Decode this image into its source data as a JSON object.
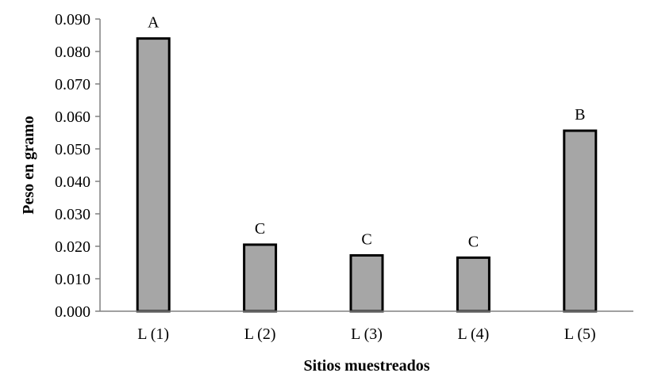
{
  "chart_data": {
    "type": "bar",
    "categories": [
      "L (1)",
      "L (2)",
      "L (3)",
      "L (4)",
      "L (5)"
    ],
    "values": [
      0.084,
      0.0205,
      0.0172,
      0.0165,
      0.0556
    ],
    "significance_letters": [
      "A",
      "C",
      "C",
      "C",
      "B"
    ],
    "xlabel": "Sitios muestreados",
    "ylabel": "Peso en gramo",
    "ylim": [
      0,
      0.09
    ],
    "yticks": [
      "0.000",
      "0.010",
      "0.020",
      "0.030",
      "0.040",
      "0.050",
      "0.060",
      "0.070",
      "0.080",
      "0.090"
    ],
    "grid": false,
    "legend": "none",
    "colors": {
      "bar_fill": "#a6a6a6",
      "bar_stroke": "#000000",
      "axis": "#808080"
    }
  }
}
